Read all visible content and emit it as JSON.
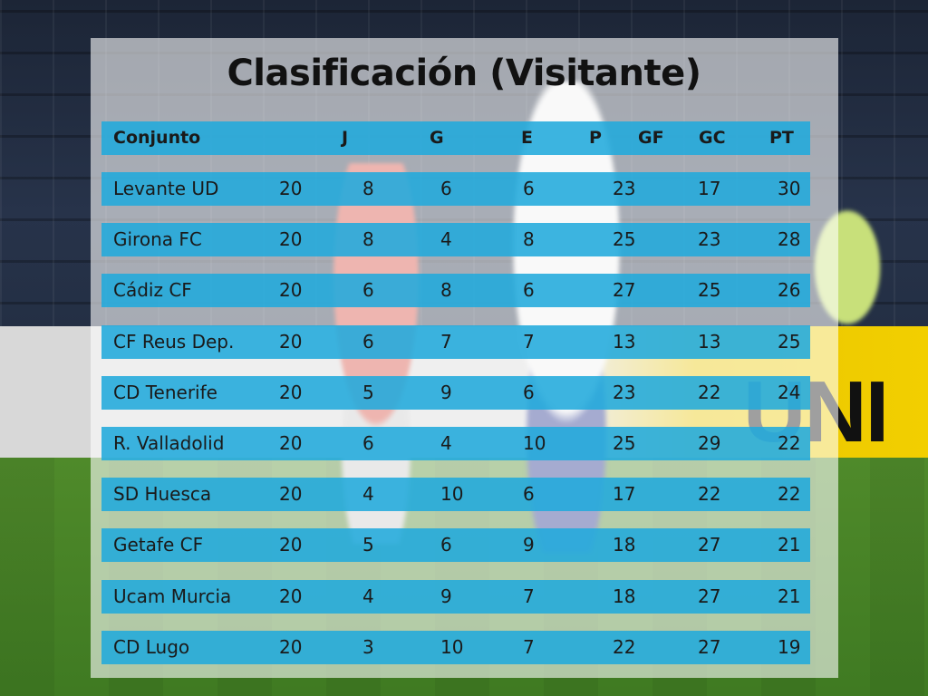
{
  "title": "Clasificación (Visitante)",
  "background": {
    "ad_text": "UNI"
  },
  "table": {
    "headers": {
      "team": "Conjunto",
      "j": "J",
      "g": "G",
      "e": "E",
      "p": "P",
      "gf": "GF",
      "gc": "GC",
      "pt": "PT"
    },
    "rows": [
      {
        "team": "Levante UD",
        "j": "20",
        "g": "8",
        "e": "6",
        "p": "6",
        "gf": "23",
        "gc": "17",
        "pt": "30"
      },
      {
        "team": "Girona FC",
        "j": "20",
        "g": "8",
        "e": "4",
        "p": "8",
        "gf": "25",
        "gc": "23",
        "pt": "28"
      },
      {
        "team": "Cádiz CF",
        "j": "20",
        "g": "6",
        "e": "8",
        "p": "6",
        "gf": "27",
        "gc": "25",
        "pt": "26"
      },
      {
        "team": "CF Reus Dep.",
        "j": "20",
        "g": "6",
        "e": "7",
        "p": "7",
        "gf": "13",
        "gc": "13",
        "pt": "25"
      },
      {
        "team": "CD Tenerife",
        "j": "20",
        "g": "5",
        "e": "9",
        "p": "6",
        "gf": "23",
        "gc": "22",
        "pt": "24"
      },
      {
        "team": "R. Valladolid",
        "j": "20",
        "g": "6",
        "e": "4",
        "p": "10",
        "gf": "25",
        "gc": "29",
        "pt": "22"
      },
      {
        "team": "SD Huesca",
        "j": "20",
        "g": "4",
        "e": "10",
        "p": "6",
        "gf": "17",
        "gc": "22",
        "pt": "22"
      },
      {
        "team": "Getafe    CF",
        "j": "20",
        "g": "5",
        "e": "6",
        "p": "9",
        "gf": "18",
        "gc": "27",
        "pt": "21"
      },
      {
        "team": "Ucam Murcia",
        "j": "20",
        "g": "4",
        "e": "9",
        "p": "7",
        "gf": "18",
        "gc": "27",
        "pt": "21"
      },
      {
        "team": "CD Lugo",
        "j": "20",
        "g": "3",
        "e": "10",
        "p": "7",
        "gf": "22",
        "gc": "27",
        "pt": "19"
      }
    ]
  },
  "colors": {
    "bar": "#21aadc",
    "panel": "#ffffff",
    "text": "#1a1a1a"
  }
}
